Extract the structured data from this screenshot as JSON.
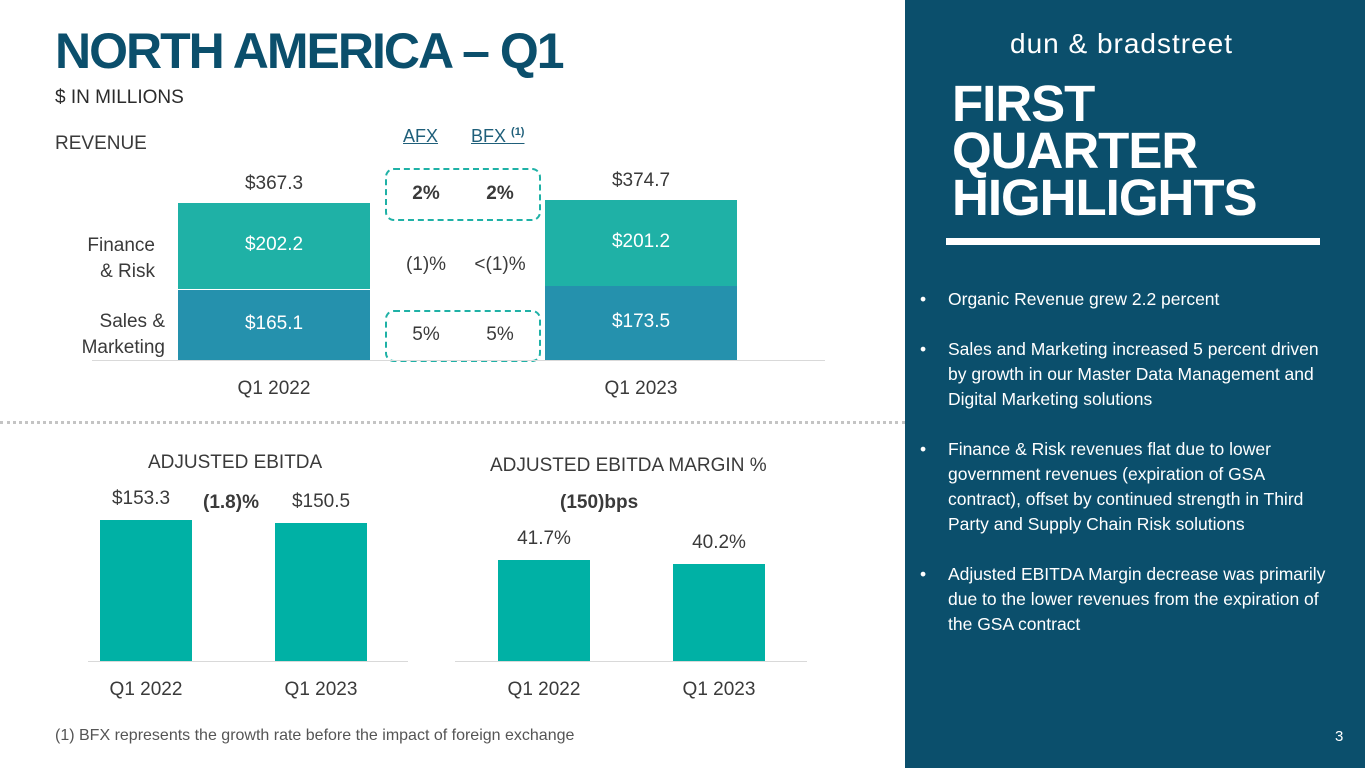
{
  "header": {
    "title": "NORTH AMERICA – Q1",
    "subtitle": "$ IN MILLIONS"
  },
  "revenue": {
    "section_label": "REVENUE",
    "col_headers": {
      "afx": "AFX",
      "bfx": "BFX",
      "bfx_note": "(1)"
    },
    "segment_labels": {
      "finance_risk": "Finance\n& Risk",
      "sales_marketing": "Sales &\nMarketing"
    },
    "growth_rows": [
      {
        "row": "total",
        "afx": "2%",
        "bfx": "2%"
      },
      {
        "row": "finance_risk",
        "afx": "(1)%",
        "bfx": "<(1)%"
      },
      {
        "row": "sales_marketing",
        "afx": "5%",
        "bfx": "5%"
      }
    ]
  },
  "ebitda": {
    "section_label": "ADJUSTED EBITDA",
    "change": "(1.8)%"
  },
  "margin": {
    "section_label": "ADJUSTED EBITDA MARGIN %",
    "change": "(150)bps"
  },
  "chart_data": [
    {
      "type": "bar",
      "stacked": true,
      "title": "REVENUE",
      "categories": [
        "Q1 2022",
        "Q1 2023"
      ],
      "series": [
        {
          "name": "Sales & Marketing",
          "values": [
            165.1,
            173.5
          ],
          "labels": [
            "$165.1",
            "$173.5"
          ]
        },
        {
          "name": "Finance & Risk",
          "values": [
            202.2,
            201.2
          ],
          "labels": [
            "$202.2",
            "$201.2"
          ]
        }
      ],
      "totals": [
        367.3,
        374.7
      ],
      "total_labels": [
        "$367.3",
        "$374.7"
      ],
      "ylim": [
        0,
        374.7
      ]
    },
    {
      "type": "bar",
      "title": "ADJUSTED EBITDA",
      "categories": [
        "Q1 2022",
        "Q1 2023"
      ],
      "values": [
        153.3,
        150.5
      ],
      "labels": [
        "$153.3",
        "$150.5"
      ],
      "ylim": [
        0,
        153.3
      ]
    },
    {
      "type": "bar",
      "title": "ADJUSTED EBITDA MARGIN %",
      "categories": [
        "Q1 2022",
        "Q1 2023"
      ],
      "values": [
        41.7,
        40.2
      ],
      "labels": [
        "41.7%",
        "40.2%"
      ],
      "ylim": [
        0,
        70.0
      ]
    }
  ],
  "footnote": "(1) BFX represents the growth rate before the impact of foreign exchange",
  "highlights": {
    "logo": "dun & bradstreet",
    "title": "FIRST\nQUARTER\nHIGHLIGHTS",
    "bullets": [
      "Organic Revenue grew 2.2 percent",
      "Sales and Marketing increased 5 percent driven by growth in our Master Data Management and Digital Marketing solutions",
      "Finance & Risk revenues flat due to lower government revenues (expiration of GSA contract), offset by continued strength in Third Party and Supply Chain Risk solutions",
      "Adjusted EBITDA Margin decrease was primarily due to the lower revenues from the expiration of the GSA contract"
    ]
  },
  "page_number": "3",
  "colors": {
    "navy": "#0b4f6c",
    "teal": "#1fb1a6",
    "blue": "#2591ad",
    "ebitda": "#00b1a5"
  }
}
